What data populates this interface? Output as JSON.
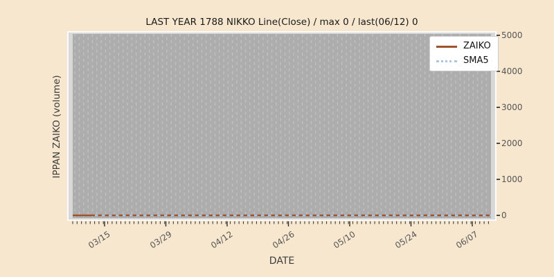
{
  "figure": {
    "background_color": "#f7e7cf",
    "plot_background_color": "#adadad",
    "plot_band_color": "#d8d8d8"
  },
  "chart_data": {
    "type": "line",
    "title": "LAST YEAR 1788 NIKKO Line(Close) / max 0 / last(06/12) 0",
    "xlabel": "DATE",
    "ylabel": "IPPAN ZAIKO (volume)",
    "ylim": [
      0,
      5000
    ],
    "y_ticks": [
      0,
      1000,
      2000,
      3000,
      4000,
      5000
    ],
    "x_tick_labels": [
      "03/15",
      "03/29",
      "04/12",
      "04/26",
      "05/10",
      "05/24",
      "06/07"
    ],
    "x_minor_ticks": "daily",
    "grid": {
      "vertical_dashed_daily": true,
      "horizontal": false
    },
    "max_value": 0,
    "last_date": "06/12",
    "last_value": 0,
    "legend_position": "upper right",
    "series": [
      {
        "name": "ZAIKO",
        "color": "#a0522d",
        "line_style": "solid",
        "constant_value": 0,
        "values_at_ticks": [
          0,
          0,
          0,
          0,
          0,
          0,
          0
        ]
      },
      {
        "name": "SMA5",
        "color": "#a9c7e3",
        "line_style": "dotted",
        "constant_value": 0,
        "values_at_ticks": [
          0,
          0,
          0,
          0,
          0,
          0,
          0
        ]
      }
    ]
  }
}
